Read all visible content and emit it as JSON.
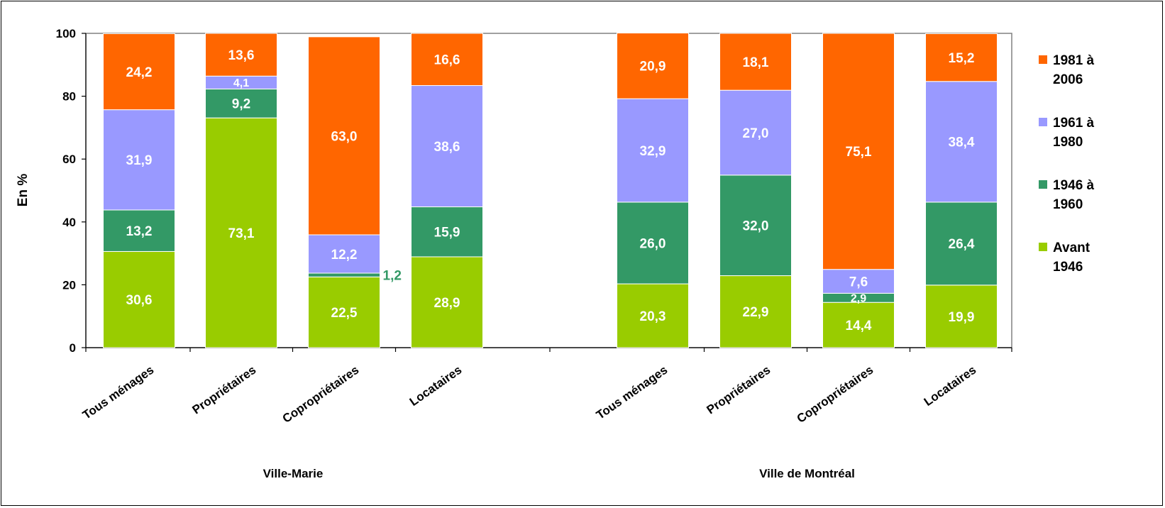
{
  "chart_data": {
    "type": "bar",
    "stacked": true,
    "ylabel": "En %",
    "ylim": [
      0,
      100
    ],
    "yticks": [
      "0",
      "20",
      "40",
      "60",
      "80",
      "100"
    ],
    "grid": false,
    "legend_position": "right",
    "groups": [
      {
        "label": "Ville-Marie",
        "categories": [
          {
            "label": "Tous ménages",
            "values": [
              30.6,
              13.2,
              31.9,
              24.2
            ],
            "labels": [
              "30,6",
              "13,2",
              "31,9",
              "24,2"
            ]
          },
          {
            "label": "Propriétaires",
            "values": [
              73.1,
              9.2,
              4.1,
              13.6
            ],
            "labels": [
              "73,1",
              "9,2",
              "4,1",
              "13,6"
            ]
          },
          {
            "label": "Copropriétaires",
            "values": [
              22.5,
              1.2,
              12.2,
              63.0
            ],
            "labels": [
              "22,5",
              "1,2",
              "12,2",
              "63,0"
            ]
          },
          {
            "label": "Locataires",
            "values": [
              28.9,
              15.9,
              38.6,
              16.6
            ],
            "labels": [
              "28,9",
              "15,9",
              "38,6",
              "16,6"
            ]
          }
        ]
      },
      {
        "label": "Ville de Montréal",
        "categories": [
          {
            "label": "Tous ménages",
            "values": [
              20.3,
              26.0,
              32.9,
              20.9
            ],
            "labels": [
              "20,3",
              "26,0",
              "32,9",
              "20,9"
            ]
          },
          {
            "label": "Propriétaires",
            "values": [
              22.9,
              32.0,
              27.0,
              18.1
            ],
            "labels": [
              "22,9",
              "32,0",
              "27,0",
              "18,1"
            ]
          },
          {
            "label": "Copropriétaires",
            "values": [
              14.4,
              2.9,
              7.6,
              75.1
            ],
            "labels": [
              "14,4",
              "2,9",
              "7,6",
              "75,1"
            ]
          },
          {
            "label": "Locataires",
            "values": [
              19.9,
              26.4,
              38.4,
              15.2
            ],
            "labels": [
              "19,9",
              "26,4",
              "38,4",
              "15,2"
            ]
          }
        ]
      }
    ],
    "series": [
      {
        "name": "Avant 1946",
        "legend_lines": [
          "Avant",
          "1946"
        ],
        "color": "#99CC00"
      },
      {
        "name": "1946 à 1960",
        "legend_lines": [
          "1946 à",
          "1960"
        ],
        "color": "#339966"
      },
      {
        "name": "1961 à 1980",
        "legend_lines": [
          "1961 à",
          "1980"
        ],
        "color": "#9999FF"
      },
      {
        "name": "1981 à 2006",
        "legend_lines": [
          "1981 à",
          "2006"
        ],
        "color": "#FF6600"
      }
    ]
  }
}
